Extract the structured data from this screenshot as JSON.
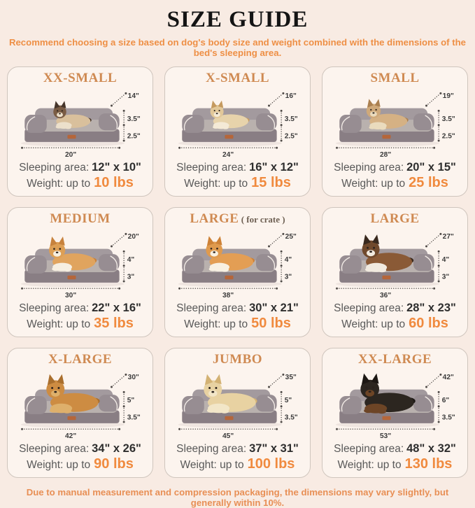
{
  "title": "SIZE GUIDE",
  "subtitle": "Recommend choosing a size based on dog's body size and weight combined with the dimensions of the bed's sleeping area.",
  "footnote": "Due to manual measurement and compression packaging, the dimensions may vary slightly, but generally within 10%.",
  "labels": {
    "sleeping_area": "Sleeping area:",
    "weight_up_to": "Weight: up to"
  },
  "colors": {
    "page_background": "#f8ebe3",
    "card_background": "#fcf4ee",
    "card_border": "#cfc5bd",
    "header_orange": "#cf8a52",
    "accent_orange": "#f08a3e",
    "subtitle_orange": "#ee8f45",
    "text_gray": "#595959",
    "value_dark": "#2e2e2e",
    "bed_base": "#897e84",
    "bed_bolster": "#a39a9e",
    "bed_cushion": "#b9b1ae"
  },
  "cells": [
    {
      "label": "XX-SMALL",
      "label_suffix": "",
      "animal": "cat",
      "dims": {
        "diag": "14\"",
        "h1": "3.5\"",
        "h2": "2.5\"",
        "width": "20\""
      },
      "sleeping_area": "12\" x 10\"",
      "weight": "10 lbs",
      "dog": {
        "scale": 0.8,
        "body": "#d9c09c",
        "head": "#7a5c44",
        "ear": "#46352a",
        "chest": "#ece0cb"
      }
    },
    {
      "label": "X-SMALL",
      "label_suffix": "",
      "animal": "puppy",
      "dims": {
        "diag": "16\"",
        "h1": "3.5\"",
        "h2": "2.5\"",
        "width": "24\""
      },
      "sleeping_area": "16\" x 12\"",
      "weight": "15 lbs",
      "dog": {
        "scale": 0.82,
        "body": "#e7d3ab",
        "head": "#e2c899",
        "ear": "#c59a5f",
        "chest": "#f4ead6"
      }
    },
    {
      "label": "SMALL",
      "label_suffix": "",
      "animal": "french-bulldog",
      "dims": {
        "diag": "19\"",
        "h1": "3.5\"",
        "h2": "2.5\"",
        "width": "28\""
      },
      "sleeping_area": "20\" x 15\"",
      "weight": "25 lbs",
      "dog": {
        "scale": 0.88,
        "body": "#d5b184",
        "head": "#cfa97a",
        "ear": "#ab8050",
        "chest": "#eadbbd"
      }
    },
    {
      "label": "MEDIUM",
      "label_suffix": "",
      "animal": "corgi",
      "dims": {
        "diag": "20\"",
        "h1": "4\"",
        "h2": "3\"",
        "width": "30\""
      },
      "sleeping_area": "22\" x 16\"",
      "weight": "35 lbs",
      "dog": {
        "scale": 1.0,
        "body": "#e0a45e",
        "head": "#dd9f55",
        "ear": "#c7823d",
        "chest": "#f6efe1"
      }
    },
    {
      "label": "LARGE",
      "label_suffix": " ( for crate )",
      "animal": "shiba-inu",
      "dims": {
        "diag": "25\"",
        "h1": "4\"",
        "h2": "3\"",
        "width": "38\""
      },
      "sleeping_area": "30\" x 21\"",
      "weight": "50 lbs",
      "dog": {
        "scale": 1.02,
        "body": "#e39e54",
        "head": "#df9a4e",
        "ear": "#cd8136",
        "chest": "#f8f1e3"
      }
    },
    {
      "label": "LARGE",
      "label_suffix": "",
      "animal": "australian-shepherd",
      "dims": {
        "diag": "27\"",
        "h1": "4\"",
        "h2": "3\"",
        "width": "36\""
      },
      "sleeping_area": "28\" x 23\"",
      "weight": "60 lbs",
      "dog": {
        "scale": 1.08,
        "body": "#8a5a36",
        "head": "#70492c",
        "ear": "#38281d",
        "chest": "#f1eadf"
      }
    },
    {
      "label": "X-LARGE",
      "label_suffix": "",
      "animal": "golden-retriever",
      "dims": {
        "diag": "30\"",
        "h1": "5\"",
        "h2": "3.5\"",
        "width": "42\""
      },
      "sleeping_area": "34\" x 26\"",
      "weight": "90 lbs",
      "dog": {
        "scale": 1.12,
        "body": "#cd8c42",
        "head": "#cd8c42",
        "ear": "#aa6f2d",
        "chest": "#deb06b"
      }
    },
    {
      "label": "JUMBO",
      "label_suffix": "",
      "animal": "labrador",
      "dims": {
        "diag": "35\"",
        "h1": "5\"",
        "h2": "3.5\"",
        "width": "45\""
      },
      "sleeping_area": "37\" x 31\"",
      "weight": "100 lbs",
      "dog": {
        "scale": 1.12,
        "body": "#e8d2a2",
        "head": "#e8d2a2",
        "ear": "#d3b274",
        "chest": "#f2e6c8"
      }
    },
    {
      "label": "XX-LARGE",
      "label_suffix": "",
      "animal": "rottweiler",
      "dims": {
        "diag": "42\"",
        "h1": "6\"",
        "h2": "3.5\"",
        "width": "53\""
      },
      "sleeping_area": "48\" x 32\"",
      "weight": "130 lbs",
      "dog": {
        "scale": 1.15,
        "body": "#2c2620",
        "head": "#2c2620",
        "ear": "#1c1713",
        "chest": "#6d4526"
      }
    }
  ]
}
